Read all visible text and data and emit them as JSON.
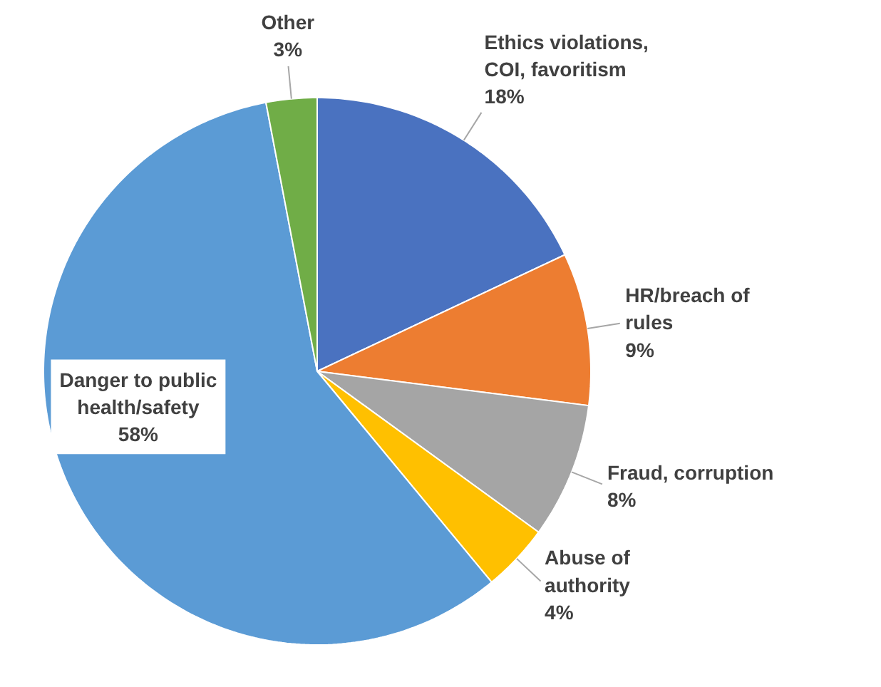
{
  "chart_data": {
    "type": "pie",
    "categories": [
      "Ethics violations,\nCOI, favoritism",
      "HR/breach of\nrules",
      "Fraud, corruption",
      "Abuse of\nauthority",
      "Danger to public\nhealth/safety",
      "Other"
    ],
    "values": [
      18,
      9,
      8,
      4,
      58,
      3
    ],
    "colors": [
      "#4a72c0",
      "#ed7d31",
      "#a5a5a5",
      "#ffc000",
      "#5b9bd5",
      "#70ad47"
    ],
    "value_labels": [
      "18%",
      "9%",
      "8%",
      "4%",
      "58%",
      "3%"
    ]
  }
}
